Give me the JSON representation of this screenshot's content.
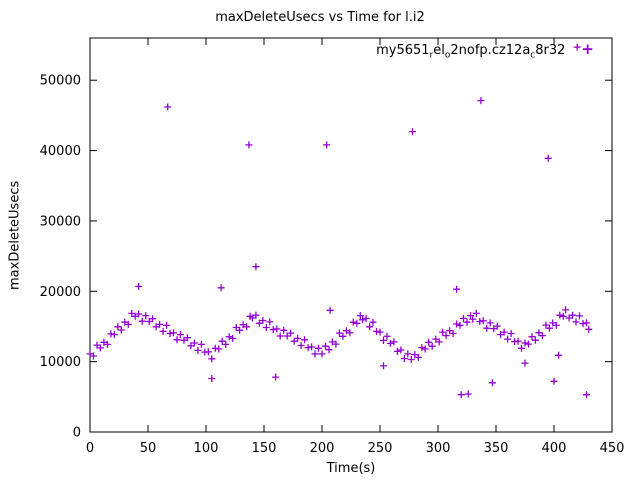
{
  "chart_data": {
    "type": "scatter",
    "title": "maxDeleteUsecs vs Time for l.i2",
    "xlabel": "Time(s)",
    "ylabel": "maxDeleteUsecs",
    "xlim": [
      0,
      450
    ],
    "ylim": [
      0,
      56000
    ],
    "xticks": [
      0,
      50,
      100,
      150,
      200,
      250,
      300,
      350,
      400,
      450
    ],
    "yticks": [
      0,
      10000,
      20000,
      30000,
      40000,
      50000
    ],
    "grid": false,
    "legend_position": "top-right-inside",
    "marker": "+",
    "color": "#9400d3",
    "series_name": "my5651_rel_o2nofp.cz12a_c8r32",
    "legend_segments": [
      {
        "text": "my5651"
      },
      {
        "text": "r",
        "sub": true
      },
      {
        "text": "el"
      },
      {
        "text": "o",
        "sub": true
      },
      {
        "text": "2nofp.cz12a"
      },
      {
        "text": "c",
        "sub": true
      },
      {
        "text": "8r32"
      }
    ],
    "points": [
      [
        0,
        11100
      ],
      [
        3,
        10800
      ],
      [
        6,
        12350
      ],
      [
        9,
        11950
      ],
      [
        12,
        12750
      ],
      [
        15,
        12450
      ],
      [
        18,
        13950
      ],
      [
        21,
        13850
      ],
      [
        24,
        14950
      ],
      [
        27,
        14500
      ],
      [
        30,
        15600
      ],
      [
        33,
        15300
      ],
      [
        36,
        16850
      ],
      [
        39,
        16450
      ],
      [
        42,
        16770
      ],
      [
        45,
        15750
      ],
      [
        48,
        16550
      ],
      [
        51,
        15700
      ],
      [
        54,
        16100
      ],
      [
        57,
        14950
      ],
      [
        60,
        15300
      ],
      [
        63,
        14300
      ],
      [
        66,
        15150
      ],
      [
        69,
        14000
      ],
      [
        72,
        14100
      ],
      [
        75,
        13100
      ],
      [
        78,
        13850
      ],
      [
        81,
        13050
      ],
      [
        84,
        13400
      ],
      [
        87,
        12250
      ],
      [
        90,
        12650
      ],
      [
        93,
        11600
      ],
      [
        96,
        12450
      ],
      [
        99,
        11350
      ],
      [
        102,
        11400
      ],
      [
        105,
        10400
      ],
      [
        108,
        11900
      ],
      [
        111,
        11800
      ],
      [
        114,
        12900
      ],
      [
        117,
        12450
      ],
      [
        120,
        13550
      ],
      [
        123,
        13300
      ],
      [
        126,
        14850
      ],
      [
        129,
        14450
      ],
      [
        132,
        15250
      ],
      [
        135,
        14950
      ],
      [
        138,
        16450
      ],
      [
        140,
        16200
      ],
      [
        143,
        16600
      ],
      [
        146,
        15450
      ],
      [
        149,
        15850
      ],
      [
        152,
        14850
      ],
      [
        155,
        15650
      ],
      [
        158,
        14550
      ],
      [
        161,
        14650
      ],
      [
        164,
        13650
      ],
      [
        167,
        14450
      ],
      [
        170,
        13650
      ],
      [
        173,
        14050
      ],
      [
        176,
        12900
      ],
      [
        179,
        13300
      ],
      [
        182,
        12300
      ],
      [
        185,
        13100
      ],
      [
        188,
        12000
      ],
      [
        191,
        12100
      ],
      [
        194,
        11100
      ],
      [
        197,
        11900
      ],
      [
        200,
        11100
      ],
      [
        203,
        12200
      ],
      [
        206,
        11700
      ],
      [
        209,
        12800
      ],
      [
        212,
        12500
      ],
      [
        215,
        14050
      ],
      [
        218,
        13600
      ],
      [
        221,
        14400
      ],
      [
        224,
        14100
      ],
      [
        227,
        15600
      ],
      [
        230,
        15450
      ],
      [
        233,
        16550
      ],
      [
        235,
        15950
      ],
      [
        238,
        16150
      ],
      [
        241,
        14950
      ],
      [
        244,
        15600
      ],
      [
        247,
        14300
      ],
      [
        250,
        14200
      ],
      [
        253,
        13000
      ],
      [
        256,
        13600
      ],
      [
        259,
        12600
      ],
      [
        262,
        12800
      ],
      [
        265,
        11450
      ],
      [
        268,
        11650
      ],
      [
        271,
        10450
      ],
      [
        274,
        11100
      ],
      [
        277,
        10300
      ],
      [
        280,
        11000
      ],
      [
        283,
        10600
      ],
      [
        286,
        12000
      ],
      [
        289,
        11800
      ],
      [
        292,
        12750
      ],
      [
        295,
        12200
      ],
      [
        298,
        13200
      ],
      [
        301,
        12800
      ],
      [
        304,
        14200
      ],
      [
        307,
        13700
      ],
      [
        310,
        14400
      ],
      [
        313,
        14000
      ],
      [
        316,
        15350
      ],
      [
        319,
        15150
      ],
      [
        322,
        16150
      ],
      [
        325,
        15600
      ],
      [
        328,
        16550
      ],
      [
        330,
        16050
      ],
      [
        333,
        16850
      ],
      [
        336,
        15700
      ],
      [
        339,
        15800
      ],
      [
        342,
        14750
      ],
      [
        345,
        15500
      ],
      [
        348,
        14700
      ],
      [
        351,
        15050
      ],
      [
        354,
        13850
      ],
      [
        357,
        14200
      ],
      [
        360,
        13200
      ],
      [
        363,
        14000
      ],
      [
        366,
        12850
      ],
      [
        369,
        12900
      ],
      [
        372,
        11900
      ],
      [
        375,
        12650
      ],
      [
        378,
        12500
      ],
      [
        381,
        13550
      ],
      [
        384,
        13050
      ],
      [
        387,
        14100
      ],
      [
        390,
        13700
      ],
      [
        393,
        15200
      ],
      [
        396,
        14750
      ],
      [
        399,
        15500
      ],
      [
        402,
        15150
      ],
      [
        405,
        16600
      ],
      [
        408,
        16450
      ],
      [
        410,
        17350
      ],
      [
        413,
        16200
      ],
      [
        416,
        16600
      ],
      [
        419,
        15650
      ],
      [
        422,
        16500
      ],
      [
        425,
        15400
      ],
      [
        428,
        15500
      ],
      [
        430,
        14600
      ],
      [
        42,
        20700
      ],
      [
        67,
        46200
      ],
      [
        105,
        7600
      ],
      [
        113,
        20500
      ],
      [
        137,
        40800
      ],
      [
        143,
        23500
      ],
      [
        160,
        7800
      ],
      [
        204,
        40800
      ],
      [
        207,
        17300
      ],
      [
        253,
        9400
      ],
      [
        278,
        42700
      ],
      [
        316,
        20300
      ],
      [
        320,
        5300
      ],
      [
        326,
        5400
      ],
      [
        337,
        47100
      ],
      [
        347,
        7000
      ],
      [
        375,
        9800
      ],
      [
        395,
        38900
      ],
      [
        400,
        7200
      ],
      [
        404,
        10900
      ],
      [
        420,
        54700
      ],
      [
        428,
        5300
      ]
    ]
  }
}
